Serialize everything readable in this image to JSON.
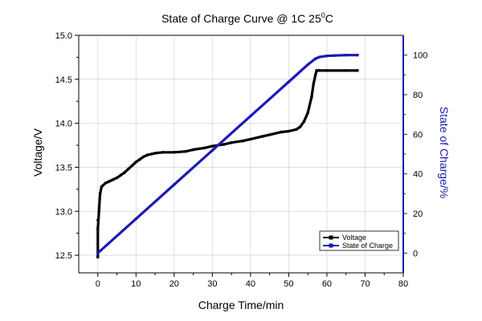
{
  "chart_data": {
    "type": "line",
    "title": "State of Charge Curve @ 1C  25",
    "title_superscript": "0",
    "title_unit": "C",
    "xlabel": "Charge Time/min",
    "ylabel": "Voltage/V",
    "y2label": "State of Charge/%",
    "xlim": [
      -5,
      80
    ],
    "ylim": [
      12.3,
      15.0
    ],
    "y2lim": [
      -10,
      110
    ],
    "x_ticks": [
      0,
      10,
      20,
      30,
      40,
      50,
      60,
      70,
      80
    ],
    "y_ticks": [
      12.5,
      13.0,
      13.5,
      14.0,
      14.5,
      15.0
    ],
    "y_tick_labels": [
      "12.5",
      "13.0",
      "13.5",
      "14.0",
      "14.5",
      "15.0"
    ],
    "y2_ticks": [
      0,
      20,
      40,
      60,
      80,
      100
    ],
    "grid": true,
    "legend_position": "bottom-right",
    "colors": {
      "voltage": "#000000",
      "soc": "#1a1ab4",
      "right_axis": "#1a1aa8",
      "grid": "#d8d8d8"
    },
    "series": [
      {
        "name": "Voltage",
        "axis": "left",
        "x": [
          0,
          0,
          0.3,
          0.6,
          1,
          2,
          3,
          4,
          5,
          6,
          7,
          8,
          9,
          10,
          11,
          12,
          13,
          14,
          15,
          17,
          20,
          23,
          25,
          28,
          30,
          33,
          35,
          38,
          40,
          43,
          45,
          48,
          50,
          52,
          53,
          54,
          55,
          56,
          56.5,
          57,
          57.3,
          58,
          60,
          65,
          68
        ],
        "y": [
          12.48,
          12.8,
          13.0,
          13.2,
          13.28,
          13.32,
          13.34,
          13.36,
          13.38,
          13.41,
          13.44,
          13.48,
          13.52,
          13.56,
          13.59,
          13.62,
          13.64,
          13.65,
          13.66,
          13.67,
          13.67,
          13.68,
          13.7,
          13.72,
          13.74,
          13.76,
          13.78,
          13.8,
          13.82,
          13.85,
          13.87,
          13.9,
          13.91,
          13.93,
          13.96,
          14.02,
          14.12,
          14.3,
          14.45,
          14.55,
          14.6,
          14.6,
          14.6,
          14.6,
          14.6
        ]
      },
      {
        "name": "State of Charge",
        "axis": "right",
        "x": [
          0,
          10,
          20,
          30,
          40,
          50,
          55,
          57,
          58,
          60,
          62,
          65,
          68
        ],
        "y": [
          0,
          17.3,
          34.6,
          51.9,
          69.2,
          86.5,
          95.2,
          98.2,
          99.0,
          99.6,
          99.8,
          100,
          100
        ]
      }
    ]
  }
}
